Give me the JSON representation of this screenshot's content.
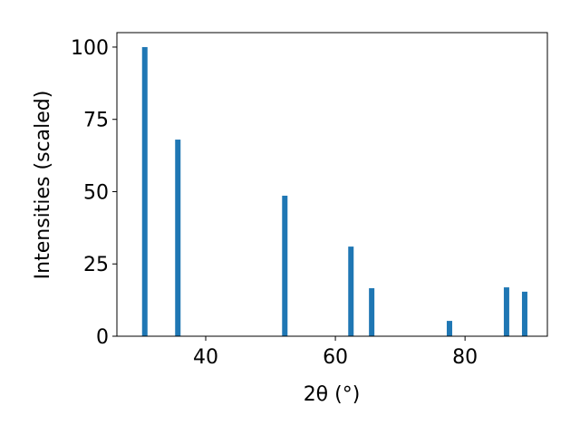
{
  "chart_data": {
    "type": "bar",
    "xlabel": "2θ (°)",
    "ylabel": "Intensities (scaled)",
    "x": [
      30.6,
      35.7,
      52.2,
      62.4,
      65.6,
      77.6,
      86.4,
      89.2
    ],
    "values": [
      100,
      68,
      48.6,
      31,
      16.6,
      5.3,
      16.9,
      15.4
    ],
    "color": "#1f77b4",
    "xlim": [
      26.3,
      92.7
    ],
    "xticks": [
      40,
      60,
      80
    ],
    "ylim": [
      0,
      105
    ],
    "yticks": [
      0,
      25,
      50,
      75,
      100
    ]
  }
}
